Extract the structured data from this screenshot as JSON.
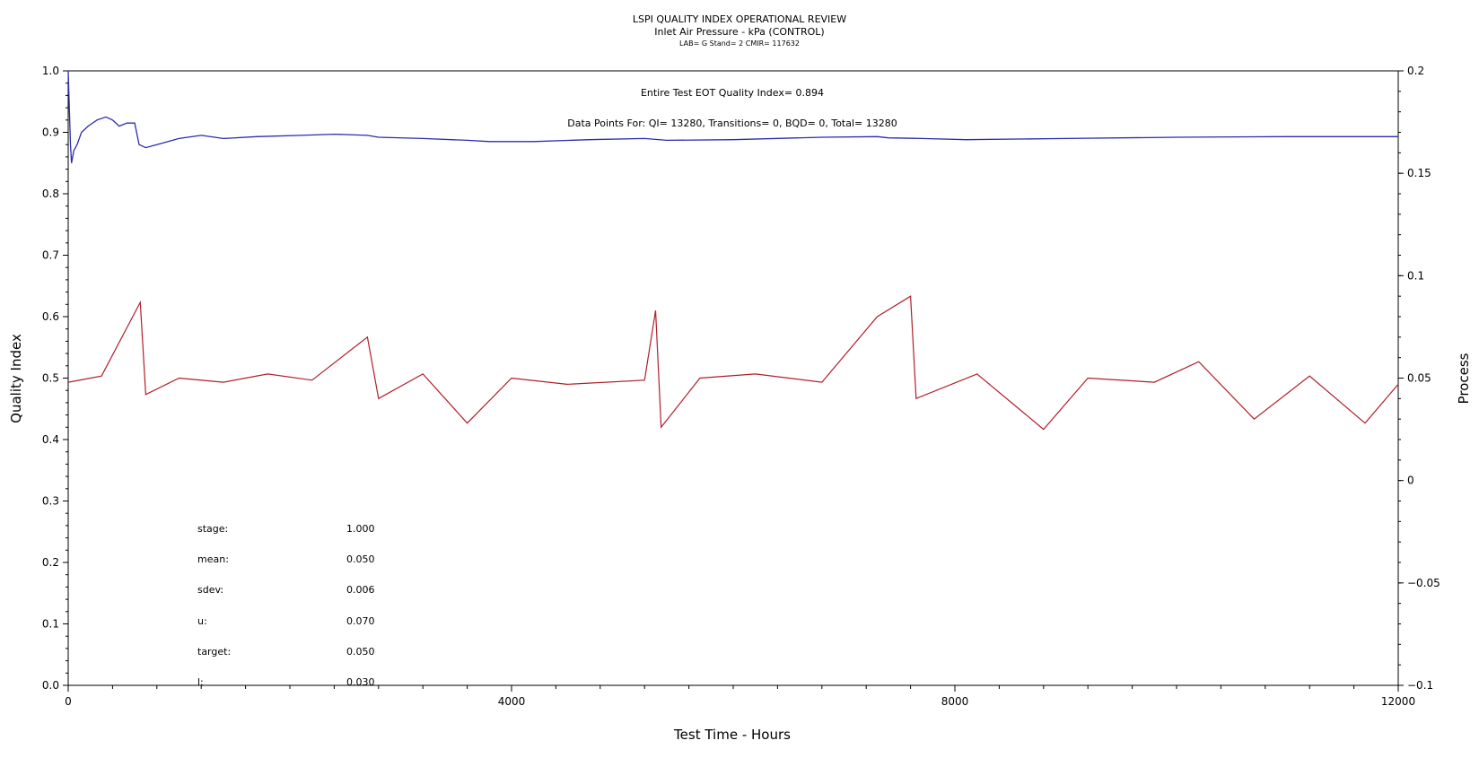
{
  "header": {
    "title": "LSPI QUALITY INDEX OPERATIONAL REVIEW",
    "subtitle": "Inlet Air Pressure - kPa (CONTROL)",
    "meta": "LAB= G Stand= 2 CMIR= 117632"
  },
  "annotations": {
    "eot": "Entire Test EOT Quality Index=   0.894",
    "counts": "Data Points For: QI= 13280, Transitions=     0,  BQD=     0, Total= 13280"
  },
  "stats": [
    {
      "label": "stage:",
      "value": "1.000"
    },
    {
      "label": "mean:",
      "value": "0.050"
    },
    {
      "label": "sdev:",
      "value": "0.006"
    },
    {
      "label": "u:",
      "value": "0.070"
    },
    {
      "label": "target:",
      "value": "0.050"
    },
    {
      "label": "l:",
      "value": "0.030"
    }
  ],
  "chart_data": {
    "type": "line",
    "xlabel": "Test Time - Hours",
    "ylabel": "Quality Index",
    "y2label": "Process",
    "xlim": [
      0,
      12000
    ],
    "ylim": [
      0,
      1.0
    ],
    "y2lim": [
      -0.1,
      0.2
    ],
    "x_ticks": [
      "0",
      "4000",
      "8000",
      "12000"
    ],
    "y_ticks": [
      "0.0",
      "0.1",
      "0.2",
      "0.3",
      "0.4",
      "0.5",
      "0.6",
      "0.7",
      "0.8",
      "0.9",
      "1.0"
    ],
    "y2_ticks": [
      "-0.1",
      "-0.05",
      "0",
      "0.05",
      "0.1",
      "0.15",
      "0.2"
    ],
    "grid": false,
    "series": [
      {
        "axis": "left",
        "color": "#2b2bb0",
        "points": [
          [
            0,
            1.0
          ],
          [
            20,
            0.88
          ],
          [
            30,
            0.85
          ],
          [
            50,
            0.87
          ],
          [
            80,
            0.88
          ],
          [
            120,
            0.9
          ],
          [
            180,
            0.91
          ],
          [
            260,
            0.92
          ],
          [
            340,
            0.925
          ],
          [
            400,
            0.92
          ],
          [
            460,
            0.91
          ],
          [
            530,
            0.915
          ],
          [
            600,
            0.915
          ],
          [
            640,
            0.88
          ],
          [
            700,
            0.875
          ],
          [
            800,
            0.88
          ],
          [
            1000,
            0.89
          ],
          [
            1200,
            0.895
          ],
          [
            1400,
            0.89
          ],
          [
            1700,
            0.893
          ],
          [
            2100,
            0.895
          ],
          [
            2400,
            0.897
          ],
          [
            2700,
            0.895
          ],
          [
            2800,
            0.892
          ],
          [
            3200,
            0.89
          ],
          [
            3600,
            0.887
          ],
          [
            3800,
            0.885
          ],
          [
            4200,
            0.885
          ],
          [
            4700,
            0.888
          ],
          [
            5200,
            0.89
          ],
          [
            5400,
            0.887
          ],
          [
            6000,
            0.888
          ],
          [
            6800,
            0.892
          ],
          [
            7300,
            0.893
          ],
          [
            7400,
            0.891
          ],
          [
            7700,
            0.89
          ],
          [
            8100,
            0.888
          ],
          [
            9000,
            0.89
          ],
          [
            10000,
            0.892
          ],
          [
            11000,
            0.893
          ],
          [
            12000,
            0.893
          ]
        ]
      },
      {
        "axis": "right",
        "color": "#b01e2a",
        "points": [
          [
            0,
            0.048
          ],
          [
            300,
            0.051
          ],
          [
            650,
            0.087
          ],
          [
            700,
            0.042
          ],
          [
            1000,
            0.05
          ],
          [
            1400,
            0.048
          ],
          [
            1800,
            0.052
          ],
          [
            2200,
            0.049
          ],
          [
            2700,
            0.07
          ],
          [
            2800,
            0.04
          ],
          [
            3200,
            0.052
          ],
          [
            3600,
            0.028
          ],
          [
            4000,
            0.05
          ],
          [
            4500,
            0.047
          ],
          [
            5200,
            0.049
          ],
          [
            5300,
            0.083
          ],
          [
            5350,
            0.026
          ],
          [
            5700,
            0.05
          ],
          [
            6200,
            0.052
          ],
          [
            6800,
            0.048
          ],
          [
            7300,
            0.08
          ],
          [
            7600,
            0.09
          ],
          [
            7650,
            0.04
          ],
          [
            8200,
            0.052
          ],
          [
            8800,
            0.025
          ],
          [
            9200,
            0.05
          ],
          [
            9800,
            0.048
          ],
          [
            10200,
            0.058
          ],
          [
            10700,
            0.03
          ],
          [
            11200,
            0.051
          ],
          [
            11700,
            0.028
          ],
          [
            12000,
            0.047
          ]
        ]
      }
    ]
  }
}
